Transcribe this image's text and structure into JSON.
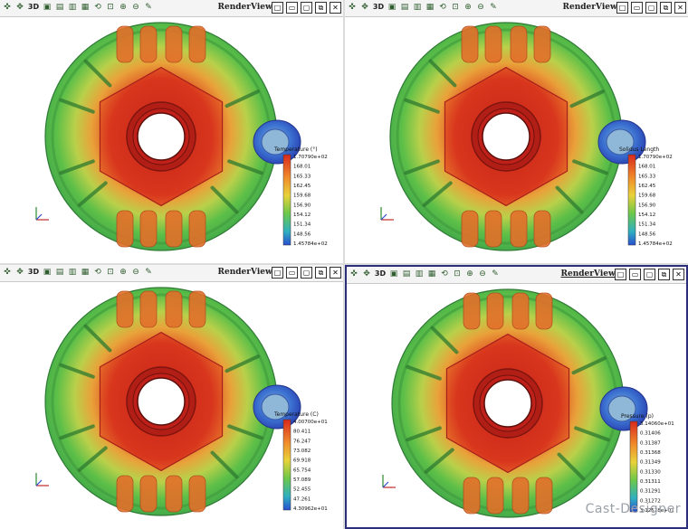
{
  "toolbar": {
    "tools": [
      "camera-reset-icon",
      "pan-icon",
      "3D",
      "front-view-icon",
      "top-view-icon",
      "side-view-icon",
      "iso-view-icon",
      "rotate-icon",
      "zoom-fit-icon",
      "zoom-in-icon",
      "zoom-out-icon",
      "pick-icon"
    ],
    "tool_glyphs": [
      "✜",
      "✥",
      "3D",
      "▣",
      "▤",
      "▥",
      "▦",
      "⟲",
      "⊡",
      "⊕",
      "⊖",
      "✎"
    ],
    "window_buttons": [
      "□",
      "▭",
      "▢",
      "⧉",
      "✕"
    ]
  },
  "panes": [
    {
      "id": "top-left",
      "title": "RenderView1",
      "active": false,
      "legend": {
        "title": "Temperature (°)",
        "ticks": [
          "1.70790e+02",
          "168.01",
          "165.33",
          "162.45",
          "159.68",
          "156.90",
          "154.12",
          "151.34",
          "148.56",
          "1.45784e+02"
        ]
      }
    },
    {
      "id": "top-right",
      "title": "RenderView2",
      "active": false,
      "legend": {
        "title": "Solidus Length",
        "ticks": [
          "1.70790e+02",
          "168.01",
          "165.33",
          "162.45",
          "159.68",
          "156.90",
          "154.12",
          "151.34",
          "148.56",
          "1.45784e+02"
        ]
      }
    },
    {
      "id": "bottom-left",
      "title": "RenderView4",
      "active": false,
      "legend": {
        "title": "Temperature (C)",
        "ticks": [
          "4.00700e+01",
          "80.411",
          "76.247",
          "73.082",
          "69.918",
          "65.754",
          "57.089",
          "52.455",
          "47.261",
          "4.30962e+01"
        ]
      }
    },
    {
      "id": "bottom-right",
      "title": "RenderView3",
      "active": true,
      "legend": {
        "title": "Pressure (p)",
        "ticks": [
          "3.14060e+01",
          "0.31406",
          "0.31387",
          "0.31368",
          "0.31349",
          "0.31330",
          "0.31311",
          "0.31291",
          "0.31272",
          "3.12528e+01"
        ]
      }
    }
  ],
  "watermark": "Cast-Designer",
  "colors": {
    "accent_border": "#2b2f7a",
    "hot": "#d8281e",
    "warm": "#f08a2a",
    "mid": "#e9d23a",
    "cool": "#5cc24a",
    "cold": "#2a4fd0"
  }
}
